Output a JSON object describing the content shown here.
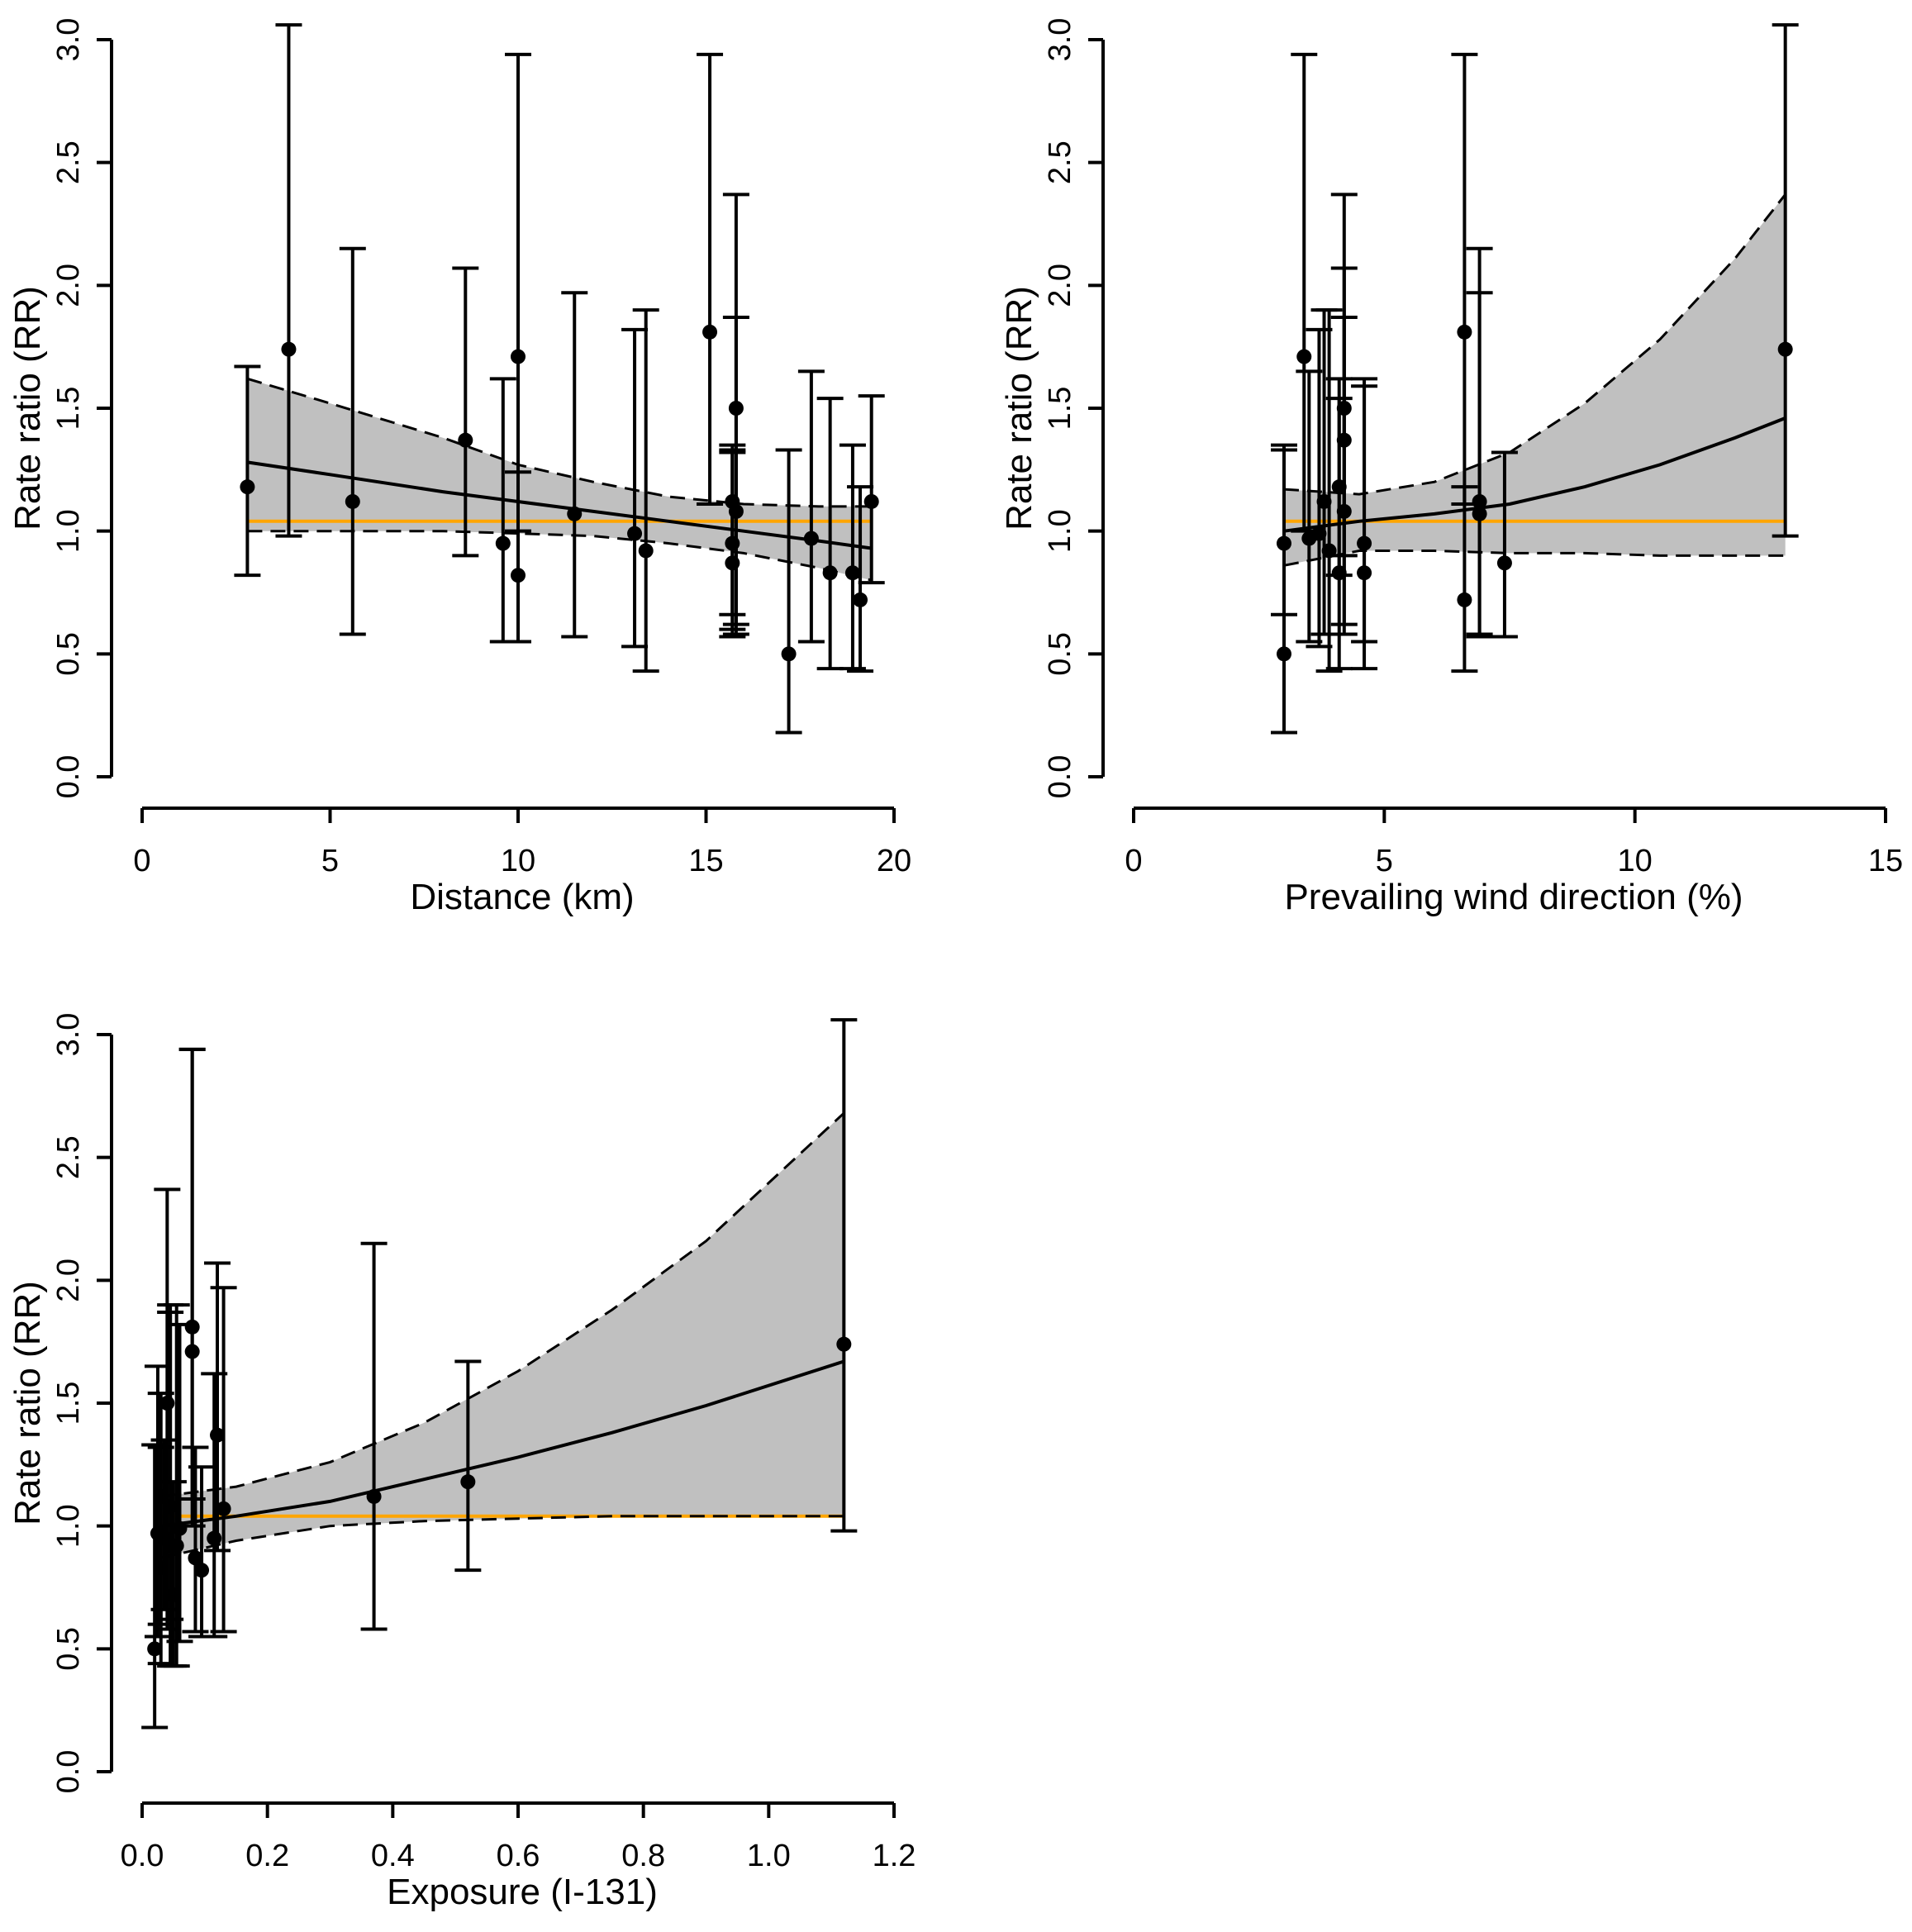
{
  "chart_data": [
    {
      "type": "scatter",
      "xlabel": "Distance (km)",
      "ylabel": "Rate ratio (RR)",
      "xlim": [
        0,
        20
      ],
      "ylim": [
        0,
        3
      ],
      "xticks": [
        "0",
        "5",
        "10",
        "15",
        "20"
      ],
      "yticks": [
        "0.0",
        "0.5",
        "1.0",
        "1.5",
        "2.0",
        "2.5",
        "3.0"
      ],
      "grid": false,
      "reference_line": {
        "y": 1.04,
        "x_range": [
          2.8,
          19.4
        ],
        "color": "#ffa500"
      },
      "fit": {
        "x": [
          2.8,
          5,
          8,
          10,
          12,
          14,
          16,
          18,
          19.4
        ],
        "estimate": [
          1.28,
          1.23,
          1.16,
          1.12,
          1.08,
          1.04,
          1.0,
          0.96,
          0.93
        ],
        "lower": [
          1.0,
          1.0,
          1.0,
          0.99,
          0.98,
          0.95,
          0.91,
          0.85,
          0.8
        ],
        "upper": [
          1.62,
          1.52,
          1.38,
          1.27,
          1.2,
          1.14,
          1.11,
          1.1,
          1.1
        ],
        "band_color": "#c0c0c0"
      },
      "points": [
        {
          "x": 2.8,
          "rr": 1.18,
          "lo": 0.82,
          "hi": 1.67
        },
        {
          "x": 3.9,
          "rr": 1.74,
          "lo": 0.98,
          "hi": 3.06
        },
        {
          "x": 5.6,
          "rr": 1.12,
          "lo": 0.58,
          "hi": 2.15
        },
        {
          "x": 8.6,
          "rr": 1.37,
          "lo": 0.9,
          "hi": 2.07
        },
        {
          "x": 9.6,
          "rr": 0.95,
          "lo": 0.55,
          "hi": 1.62
        },
        {
          "x": 10.0,
          "rr": 1.71,
          "lo": 1.0,
          "hi": 2.94
        },
        {
          "x": 10.0,
          "rr": 0.82,
          "lo": 0.55,
          "hi": 1.24
        },
        {
          "x": 11.5,
          "rr": 1.07,
          "lo": 0.57,
          "hi": 1.97
        },
        {
          "x": 13.1,
          "rr": 0.99,
          "lo": 0.53,
          "hi": 1.82
        },
        {
          "x": 13.4,
          "rr": 0.92,
          "lo": 0.43,
          "hi": 1.9
        },
        {
          "x": 15.1,
          "rr": 1.81,
          "lo": 1.11,
          "hi": 2.94
        },
        {
          "x": 15.7,
          "rr": 0.95,
          "lo": 0.66,
          "hi": 1.35
        },
        {
          "x": 15.7,
          "rr": 1.12,
          "lo": 0.6,
          "hi": 1.32
        },
        {
          "x": 15.7,
          "rr": 0.87,
          "lo": 0.57,
          "hi": 1.33
        },
        {
          "x": 15.8,
          "rr": 1.5,
          "lo": 0.58,
          "hi": 2.37
        },
        {
          "x": 15.8,
          "rr": 1.08,
          "lo": 0.62,
          "hi": 1.87
        },
        {
          "x": 17.2,
          "rr": 0.5,
          "lo": 0.18,
          "hi": 1.33
        },
        {
          "x": 17.8,
          "rr": 0.97,
          "lo": 0.55,
          "hi": 1.65
        },
        {
          "x": 18.3,
          "rr": 0.83,
          "lo": 0.44,
          "hi": 1.54
        },
        {
          "x": 18.9,
          "rr": 0.83,
          "lo": 0.44,
          "hi": 1.35
        },
        {
          "x": 19.1,
          "rr": 0.72,
          "lo": 0.43,
          "hi": 1.18
        },
        {
          "x": 19.4,
          "rr": 1.12,
          "lo": 0.79,
          "hi": 1.55
        }
      ]
    },
    {
      "type": "scatter",
      "xlabel": "Prevailing wind direction (%)",
      "ylabel": "Rate ratio (RR)",
      "xlim": [
        0,
        15
      ],
      "ylim": [
        0,
        3
      ],
      "xticks": [
        "0",
        "5",
        "10",
        "15"
      ],
      "yticks": [
        "0.0",
        "0.5",
        "1.0",
        "1.5",
        "2.0",
        "2.5",
        "3.0"
      ],
      "grid": false,
      "reference_line": {
        "y": 1.04,
        "x_range": [
          3.0,
          13.0
        ],
        "color": "#ffa500"
      },
      "fit": {
        "x": [
          3.0,
          4.5,
          6,
          7.5,
          9,
          10.5,
          12,
          13.0
        ],
        "estimate": [
          1.0,
          1.04,
          1.07,
          1.11,
          1.18,
          1.27,
          1.38,
          1.46
        ],
        "lower": [
          0.86,
          0.92,
          0.92,
          0.91,
          0.91,
          0.9,
          0.9,
          0.9
        ],
        "upper": [
          1.17,
          1.15,
          1.2,
          1.32,
          1.52,
          1.78,
          2.11,
          2.37
        ],
        "band_color": "#c0c0c0"
      },
      "points": [
        {
          "x": 3.0,
          "rr": 0.95,
          "lo": 0.66,
          "hi": 1.35
        },
        {
          "x": 3.0,
          "rr": 0.5,
          "lo": 0.18,
          "hi": 1.33
        },
        {
          "x": 3.4,
          "rr": 1.71,
          "lo": 1.0,
          "hi": 2.94
        },
        {
          "x": 3.5,
          "rr": 0.97,
          "lo": 0.55,
          "hi": 1.65
        },
        {
          "x": 3.7,
          "rr": 0.99,
          "lo": 0.53,
          "hi": 1.82
        },
        {
          "x": 3.8,
          "rr": 1.12,
          "lo": 0.58,
          "hi": 1.9
        },
        {
          "x": 3.9,
          "rr": 0.92,
          "lo": 0.43,
          "hi": 1.9
        },
        {
          "x": 4.1,
          "rr": 0.83,
          "lo": 0.44,
          "hi": 1.54
        },
        {
          "x": 4.1,
          "rr": 1.18,
          "lo": 0.82,
          "hi": 1.62
        },
        {
          "x": 4.2,
          "rr": 1.5,
          "lo": 0.58,
          "hi": 2.37
        },
        {
          "x": 4.2,
          "rr": 1.37,
          "lo": 0.9,
          "hi": 2.07
        },
        {
          "x": 4.2,
          "rr": 1.08,
          "lo": 0.62,
          "hi": 1.87
        },
        {
          "x": 4.6,
          "rr": 0.95,
          "lo": 0.55,
          "hi": 1.62
        },
        {
          "x": 4.6,
          "rr": 0.83,
          "lo": 0.44,
          "hi": 1.59
        },
        {
          "x": 6.6,
          "rr": 1.81,
          "lo": 1.11,
          "hi": 2.94
        },
        {
          "x": 6.6,
          "rr": 0.72,
          "lo": 0.43,
          "hi": 1.18
        },
        {
          "x": 6.9,
          "rr": 1.12,
          "lo": 0.58,
          "hi": 2.15
        },
        {
          "x": 6.9,
          "rr": 1.07,
          "lo": 0.57,
          "hi": 1.97
        },
        {
          "x": 7.4,
          "rr": 0.87,
          "lo": 0.57,
          "hi": 1.32
        },
        {
          "x": 13.0,
          "rr": 1.74,
          "lo": 0.98,
          "hi": 3.06
        }
      ]
    },
    {
      "type": "scatter",
      "xlabel": "Exposure (I-131)",
      "ylabel": "Rate ratio (RR)",
      "xlim": [
        0,
        1.2
      ],
      "ylim": [
        0,
        3
      ],
      "xticks": [
        "0.0",
        "0.2",
        "0.4",
        "0.6",
        "0.8",
        "1.0",
        "1.2"
      ],
      "yticks": [
        "0.0",
        "0.5",
        "1.0",
        "1.5",
        "2.0",
        "2.5",
        "3.0"
      ],
      "grid": false,
      "reference_line": {
        "y": 1.04,
        "x_range": [
          0.03,
          1.12
        ],
        "color": "#ffa500"
      },
      "fit": {
        "x": [
          0.03,
          0.15,
          0.3,
          0.45,
          0.6,
          0.75,
          0.9,
          1.12
        ],
        "estimate": [
          1.0,
          1.04,
          1.1,
          1.19,
          1.28,
          1.38,
          1.49,
          1.67
        ],
        "lower": [
          0.87,
          0.94,
          1.0,
          1.02,
          1.03,
          1.04,
          1.04,
          1.04
        ],
        "upper": [
          1.12,
          1.16,
          1.26,
          1.42,
          1.63,
          1.88,
          2.16,
          2.68
        ],
        "band_color": "#c0c0c0"
      },
      "points": [
        {
          "x": 0.02,
          "rr": 0.5,
          "lo": 0.18,
          "hi": 1.33
        },
        {
          "x": 0.025,
          "rr": 0.97,
          "lo": 0.55,
          "hi": 1.65
        },
        {
          "x": 0.03,
          "rr": 1.12,
          "lo": 0.6,
          "hi": 1.32
        },
        {
          "x": 0.03,
          "rr": 0.83,
          "lo": 0.44,
          "hi": 1.54
        },
        {
          "x": 0.035,
          "rr": 0.95,
          "lo": 0.66,
          "hi": 1.35
        },
        {
          "x": 0.04,
          "rr": 1.5,
          "lo": 0.58,
          "hi": 2.37
        },
        {
          "x": 0.045,
          "rr": 1.08,
          "lo": 0.62,
          "hi": 1.87
        },
        {
          "x": 0.045,
          "rr": 0.92,
          "lo": 0.43,
          "hi": 1.9
        },
        {
          "x": 0.05,
          "rr": 0.72,
          "lo": 0.43,
          "hi": 1.18
        },
        {
          "x": 0.055,
          "rr": 0.92,
          "lo": 0.43,
          "hi": 1.9
        },
        {
          "x": 0.06,
          "rr": 0.99,
          "lo": 0.53,
          "hi": 1.82
        },
        {
          "x": 0.08,
          "rr": 1.81,
          "lo": 1.11,
          "hi": 2.94
        },
        {
          "x": 0.08,
          "rr": 1.71,
          "lo": 1.0,
          "hi": 2.94
        },
        {
          "x": 0.085,
          "rr": 0.87,
          "lo": 0.57,
          "hi": 1.32
        },
        {
          "x": 0.095,
          "rr": 0.82,
          "lo": 0.55,
          "hi": 1.24
        },
        {
          "x": 0.115,
          "rr": 0.95,
          "lo": 0.55,
          "hi": 1.62
        },
        {
          "x": 0.12,
          "rr": 1.37,
          "lo": 0.9,
          "hi": 2.07
        },
        {
          "x": 0.13,
          "rr": 1.07,
          "lo": 0.57,
          "hi": 1.97
        },
        {
          "x": 0.37,
          "rr": 1.12,
          "lo": 0.58,
          "hi": 2.15
        },
        {
          "x": 0.52,
          "rr": 1.18,
          "lo": 0.82,
          "hi": 1.67
        },
        {
          "x": 1.12,
          "rr": 1.74,
          "lo": 0.98,
          "hi": 3.06
        }
      ]
    }
  ]
}
